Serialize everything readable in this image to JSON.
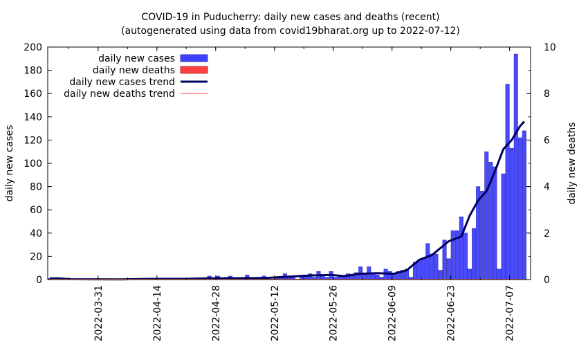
{
  "chart_data": {
    "type": "bar",
    "title": "COVID-19 in Puducherry: daily new cases and deaths (recent)",
    "subtitle": "(autogenerated using data from covid19bharat.org up to 2022-07-12)",
    "ylabel": "daily new cases",
    "y2label": "daily new deaths",
    "ylim": [
      0,
      200
    ],
    "y2lim": [
      0,
      10
    ],
    "yticks": [
      "0",
      "20",
      "40",
      "60",
      "80",
      "100",
      "120",
      "140",
      "160",
      "180",
      "200"
    ],
    "y2ticks": [
      "0",
      "2",
      "4",
      "6",
      "8",
      "10"
    ],
    "x_start": "2022-03-19",
    "x_end": "2022-07-12",
    "xticks": [
      "2022-03-31",
      "2022-04-14",
      "2022-04-28",
      "2022-05-12",
      "2022-05-26",
      "2022-06-09",
      "2022-06-23",
      "2022-07-07"
    ],
    "legend": [
      {
        "label": "daily new cases",
        "kind": "bar",
        "color": "#4040ff"
      },
      {
        "label": "daily new deaths",
        "kind": "bar",
        "color": "#ff4040"
      },
      {
        "label": "daily new cases trend",
        "kind": "line",
        "color": "#000060"
      },
      {
        "label": "daily new deaths trend",
        "kind": "line",
        "color": "#ff9f9f"
      }
    ],
    "legend_position": "top-left",
    "series": [
      {
        "name": "daily new cases",
        "type": "bar",
        "color": "#4040ff",
        "points": [
          [
            "2022-03-19",
            1
          ],
          [
            "2022-03-20",
            1
          ],
          [
            "2022-03-21",
            1
          ],
          [
            "2022-03-23",
            1
          ],
          [
            "2022-04-12",
            1
          ],
          [
            "2022-04-23",
            1
          ],
          [
            "2022-04-26",
            3
          ],
          [
            "2022-04-28",
            3
          ],
          [
            "2022-04-30",
            2
          ],
          [
            "2022-05-01",
            3
          ],
          [
            "2022-05-05",
            4
          ],
          [
            "2022-05-09",
            3
          ],
          [
            "2022-05-12",
            2
          ],
          [
            "2022-05-13",
            2
          ],
          [
            "2022-05-14",
            5
          ],
          [
            "2022-05-15",
            3
          ],
          [
            "2022-05-16",
            2
          ],
          [
            "2022-05-18",
            3
          ],
          [
            "2022-05-19",
            3
          ],
          [
            "2022-05-20",
            5
          ],
          [
            "2022-05-21",
            2
          ],
          [
            "2022-05-22",
            7
          ],
          [
            "2022-05-23",
            4
          ],
          [
            "2022-05-24",
            2
          ],
          [
            "2022-05-25",
            7
          ],
          [
            "2022-05-26",
            2
          ],
          [
            "2022-05-27",
            3
          ],
          [
            "2022-05-28",
            2
          ],
          [
            "2022-05-29",
            5
          ],
          [
            "2022-05-30",
            3
          ],
          [
            "2022-05-31",
            6
          ],
          [
            "2022-06-01",
            11
          ],
          [
            "2022-06-02",
            5
          ],
          [
            "2022-06-03",
            11
          ],
          [
            "2022-06-04",
            6
          ],
          [
            "2022-06-05",
            4
          ],
          [
            "2022-06-06",
            2
          ],
          [
            "2022-06-07",
            9
          ],
          [
            "2022-06-08",
            7
          ],
          [
            "2022-06-09",
            5
          ],
          [
            "2022-06-10",
            7
          ],
          [
            "2022-06-11",
            8
          ],
          [
            "2022-06-12",
            9
          ],
          [
            "2022-06-13",
            2
          ],
          [
            "2022-06-14",
            15
          ],
          [
            "2022-06-15",
            17
          ],
          [
            "2022-06-16",
            18
          ],
          [
            "2022-06-17",
            31
          ],
          [
            "2022-06-18",
            22
          ],
          [
            "2022-06-19",
            22
          ],
          [
            "2022-06-20",
            8
          ],
          [
            "2022-06-21",
            34
          ],
          [
            "2022-06-22",
            18
          ],
          [
            "2022-06-23",
            42
          ],
          [
            "2022-06-24",
            42
          ],
          [
            "2022-06-25",
            54
          ],
          [
            "2022-06-26",
            40
          ],
          [
            "2022-06-27",
            9
          ],
          [
            "2022-06-28",
            44
          ],
          [
            "2022-06-29",
            80
          ],
          [
            "2022-06-30",
            76
          ],
          [
            "2022-07-01",
            110
          ],
          [
            "2022-07-02",
            101
          ],
          [
            "2022-07-03",
            97
          ],
          [
            "2022-07-04",
            9
          ],
          [
            "2022-07-05",
            91
          ],
          [
            "2022-07-06",
            168
          ],
          [
            "2022-07-07",
            113
          ],
          [
            "2022-07-08",
            194
          ],
          [
            "2022-07-09",
            122
          ],
          [
            "2022-07-10",
            128
          ]
        ]
      },
      {
        "name": "daily new deaths",
        "type": "bar",
        "color": "#ff4040",
        "points": []
      },
      {
        "name": "daily new cases trend",
        "type": "line",
        "color": "#000060",
        "points": [
          [
            "2022-03-19",
            1
          ],
          [
            "2022-03-21",
            1
          ],
          [
            "2022-03-24",
            0.3
          ],
          [
            "2022-04-05",
            0.2
          ],
          [
            "2022-04-12",
            0.6
          ],
          [
            "2022-04-20",
            0.6
          ],
          [
            "2022-04-25",
            1
          ],
          [
            "2022-05-05",
            1.2
          ],
          [
            "2022-05-10",
            1.5
          ],
          [
            "2022-05-15",
            2.5
          ],
          [
            "2022-05-20",
            3.5
          ],
          [
            "2022-05-25",
            4
          ],
          [
            "2022-05-28",
            3
          ],
          [
            "2022-06-01",
            5
          ],
          [
            "2022-06-05",
            5.5
          ],
          [
            "2022-06-09",
            5
          ],
          [
            "2022-06-12",
            8
          ],
          [
            "2022-06-15",
            17
          ],
          [
            "2022-06-18",
            21
          ],
          [
            "2022-06-20",
            27
          ],
          [
            "2022-06-22",
            33
          ],
          [
            "2022-06-25",
            37
          ],
          [
            "2022-06-27",
            55
          ],
          [
            "2022-06-29",
            68
          ],
          [
            "2022-07-01",
            76
          ],
          [
            "2022-07-03",
            93
          ],
          [
            "2022-07-05",
            112
          ],
          [
            "2022-07-07",
            120
          ],
          [
            "2022-07-09",
            132
          ],
          [
            "2022-07-10",
            136
          ]
        ]
      },
      {
        "name": "daily new deaths trend",
        "type": "line",
        "color": "#ff9f9f",
        "points": [
          [
            "2022-03-19",
            0
          ],
          [
            "2022-07-10",
            0
          ]
        ]
      }
    ]
  }
}
